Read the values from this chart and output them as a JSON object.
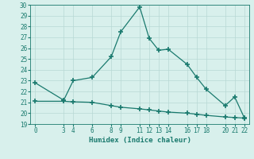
{
  "xlabel": "Humidex (Indice chaleur)",
  "ylabel": "",
  "xlim": [
    -0.5,
    22.5
  ],
  "ylim": [
    19,
    30
  ],
  "yticks": [
    19,
    20,
    21,
    22,
    23,
    24,
    25,
    26,
    27,
    28,
    29,
    30
  ],
  "xticks": [
    0,
    3,
    4,
    6,
    8,
    9,
    11,
    12,
    13,
    14,
    16,
    17,
    18,
    20,
    21,
    22
  ],
  "main_x": [
    0,
    3,
    4,
    6,
    8,
    9,
    11,
    12,
    13,
    14,
    16,
    17,
    18,
    20,
    21,
    22
  ],
  "main_y": [
    22.8,
    21.2,
    23.0,
    23.3,
    25.2,
    27.5,
    29.8,
    26.9,
    25.8,
    25.9,
    24.5,
    23.3,
    22.2,
    20.7,
    21.5,
    19.6
  ],
  "ref_x": [
    0,
    3,
    4,
    6,
    8,
    9,
    11,
    12,
    13,
    14,
    16,
    17,
    18,
    20,
    21,
    22
  ],
  "ref_y": [
    21.1,
    21.1,
    21.05,
    21.0,
    20.7,
    20.55,
    20.4,
    20.3,
    20.2,
    20.1,
    20.0,
    19.9,
    19.8,
    19.65,
    19.6,
    19.55
  ],
  "line_color": "#1a7a6e",
  "bg_color": "#d8f0ec",
  "grid_color": "#b8d8d4",
  "marker": "+",
  "markersize": 4,
  "markeredgewidth": 1.2,
  "linewidth": 0.9,
  "label_fontsize": 6.5,
  "tick_fontsize": 5.5
}
